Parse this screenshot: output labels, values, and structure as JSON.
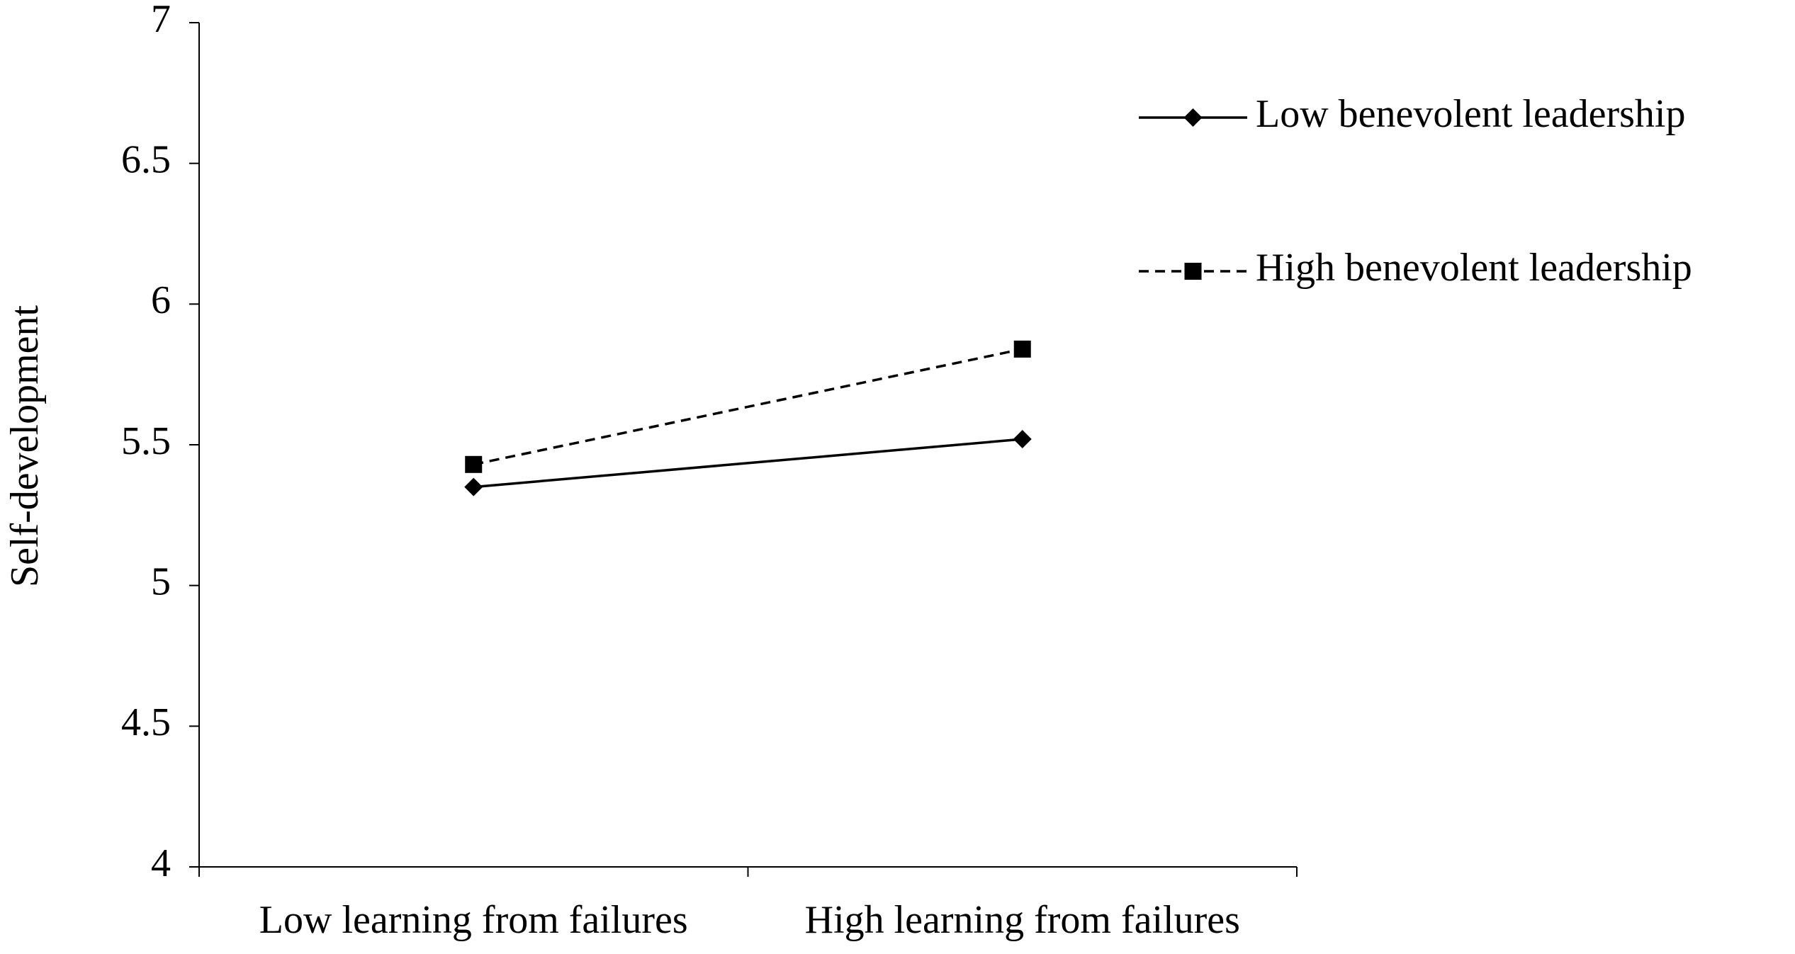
{
  "chart_data": {
    "type": "line",
    "y_label": "Self-development",
    "categories": [
      "Low learning from failures",
      "High learning from failures"
    ],
    "series": [
      {
        "name": "Low benevolent leadership",
        "color": "#000000",
        "line_style": "solid",
        "marker": "diamond",
        "values": [
          5.35,
          5.52
        ]
      },
      {
        "name": "High benevolent leadership",
        "color": "#000000",
        "line_style": "dashed",
        "marker": "square",
        "values": [
          5.43,
          5.84
        ]
      }
    ],
    "ylim": [
      4,
      7
    ],
    "yticks": [
      4,
      4.5,
      5,
      5.5,
      6,
      6.5,
      7
    ],
    "grid": false,
    "legend": "upper right"
  }
}
